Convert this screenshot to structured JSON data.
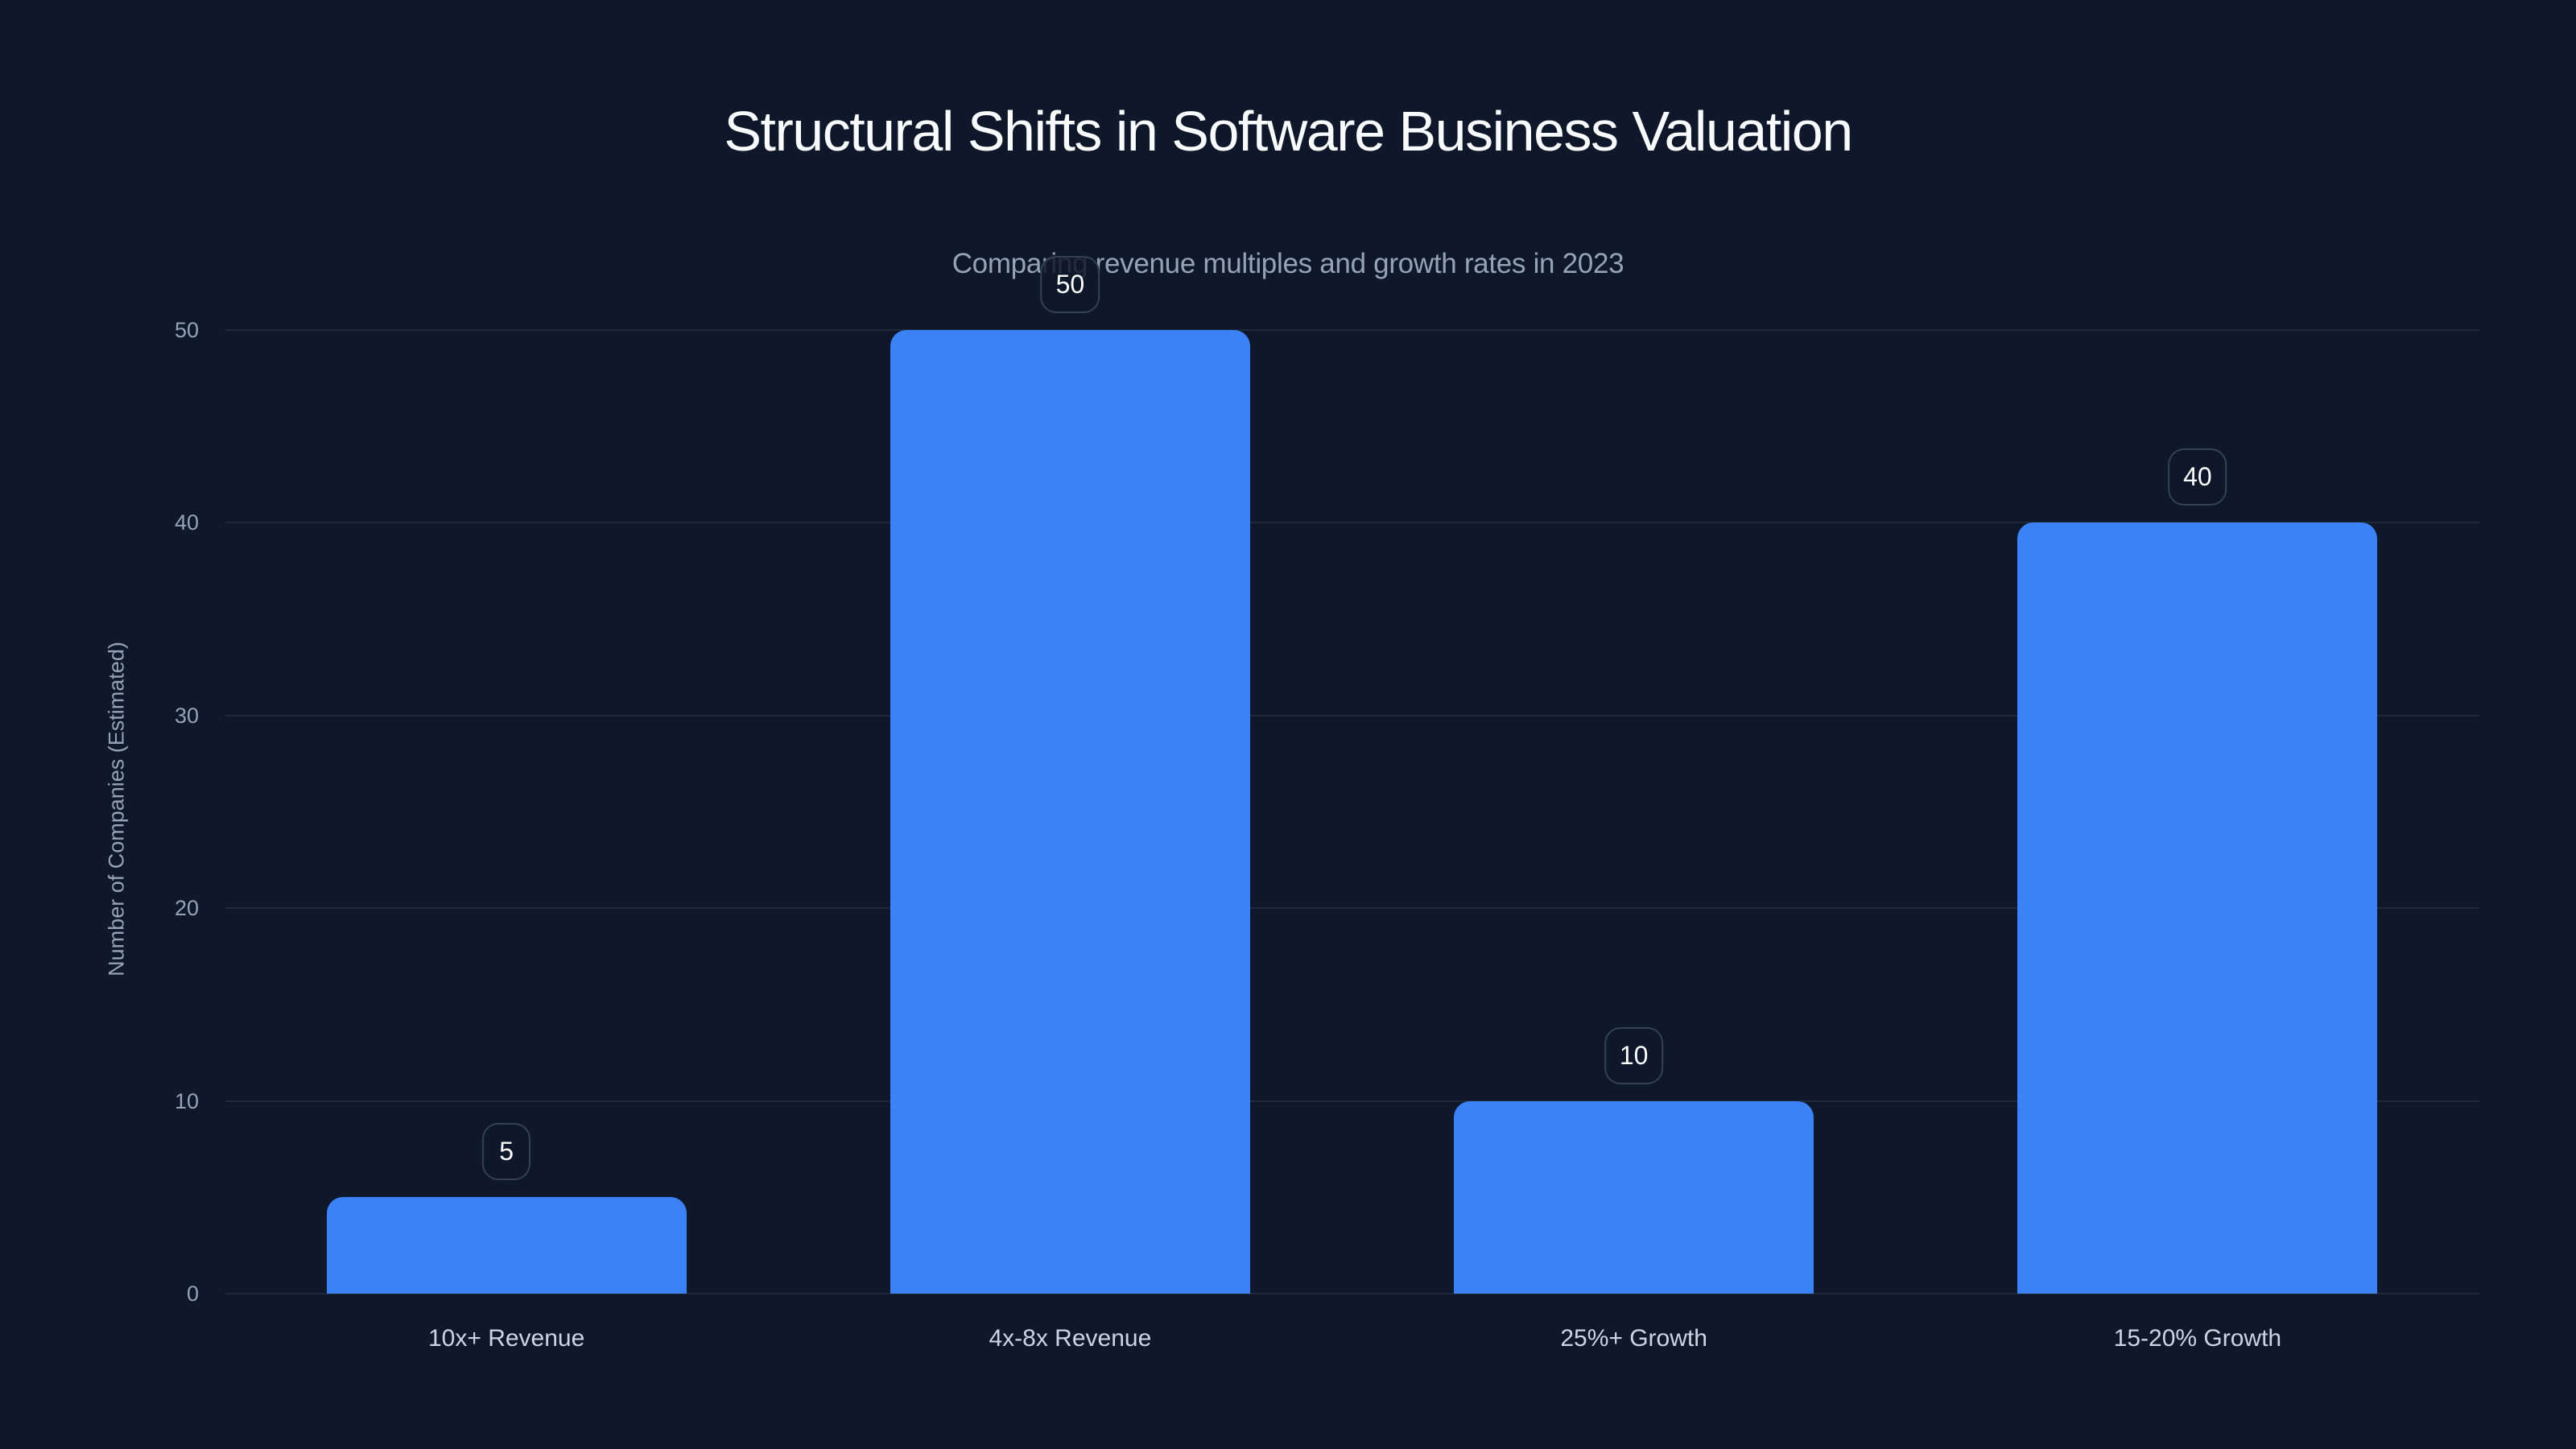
{
  "title": "Structural Shifts in Software Business Valuation",
  "subtitle": "Comparing revenue multiples and growth rates in 2023",
  "colors": {
    "background": "#0f172a",
    "bar": "#3b82f6",
    "grid": "#1e293b",
    "tick_text": "#94a3b8",
    "label_border": "#334155"
  },
  "y_axis": {
    "label": "Number of Companies (Estimated)",
    "ticks": [
      "0",
      "10",
      "20",
      "30",
      "40",
      "50"
    ]
  },
  "bars": [
    {
      "category": "10x+ Revenue",
      "value": 5,
      "value_label": "5"
    },
    {
      "category": "4x-8x Revenue",
      "value": 50,
      "value_label": "50"
    },
    {
      "category": "25%+ Growth",
      "value": 10,
      "value_label": "10"
    },
    {
      "category": "15-20% Growth",
      "value": 40,
      "value_label": "40"
    }
  ],
  "chart_data": {
    "type": "bar",
    "title": "Structural Shifts in Software Business Valuation",
    "subtitle": "Comparing revenue multiples and growth rates in 2023",
    "categories": [
      "10x+ Revenue",
      "4x-8x Revenue",
      "25%+ Growth",
      "15-20% Growth"
    ],
    "values": [
      5,
      50,
      10,
      40
    ],
    "xlabel": "",
    "ylabel": "Number of Companies (Estimated)",
    "ylim": [
      0,
      50
    ],
    "yticks": [
      0,
      10,
      20,
      30,
      40,
      50
    ],
    "grid": true,
    "legend": null,
    "data_labels": true
  }
}
